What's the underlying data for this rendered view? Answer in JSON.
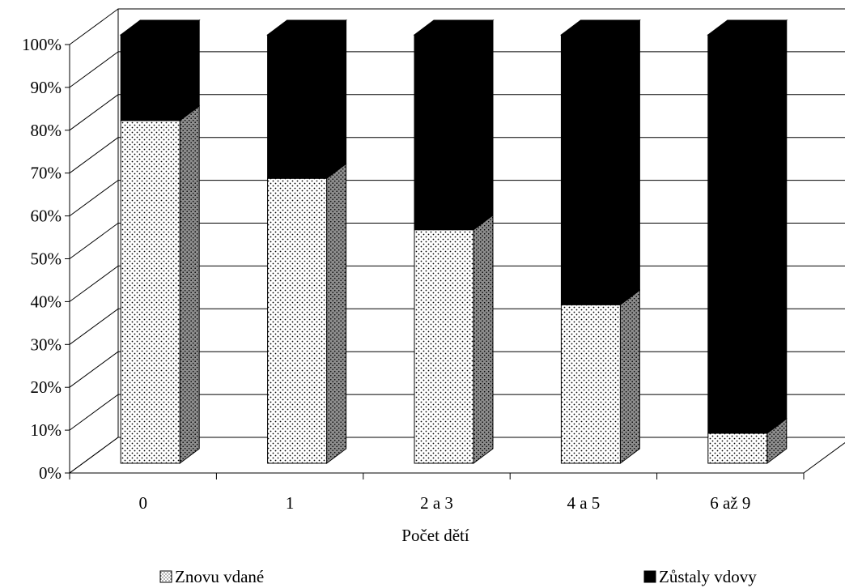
{
  "chart_data": {
    "type": "bar",
    "stacked": "percent",
    "three_d": true,
    "categories": [
      "0",
      "1",
      "2 a 3",
      "4 a 5",
      "6 až 9"
    ],
    "series": [
      {
        "name": "Znovu vdané",
        "values": [
          80,
          66.5,
          54.5,
          37,
          7
        ],
        "color": "#ffffff",
        "pattern": "dots"
      },
      {
        "name": "Zůstaly vdovy",
        "values": [
          20,
          33.5,
          45.5,
          63,
          93
        ],
        "color": "#000000",
        "pattern": "solid"
      }
    ],
    "yticks": [
      "0%",
      "10%",
      "20%",
      "30%",
      "40%",
      "50%",
      "60%",
      "70%",
      "80%",
      "90%",
      "100%"
    ],
    "ylim": [
      0,
      100
    ],
    "xlabel": "Počet dětí",
    "ylabel": "",
    "title": "",
    "grid": true,
    "legend_position": "bottom"
  }
}
